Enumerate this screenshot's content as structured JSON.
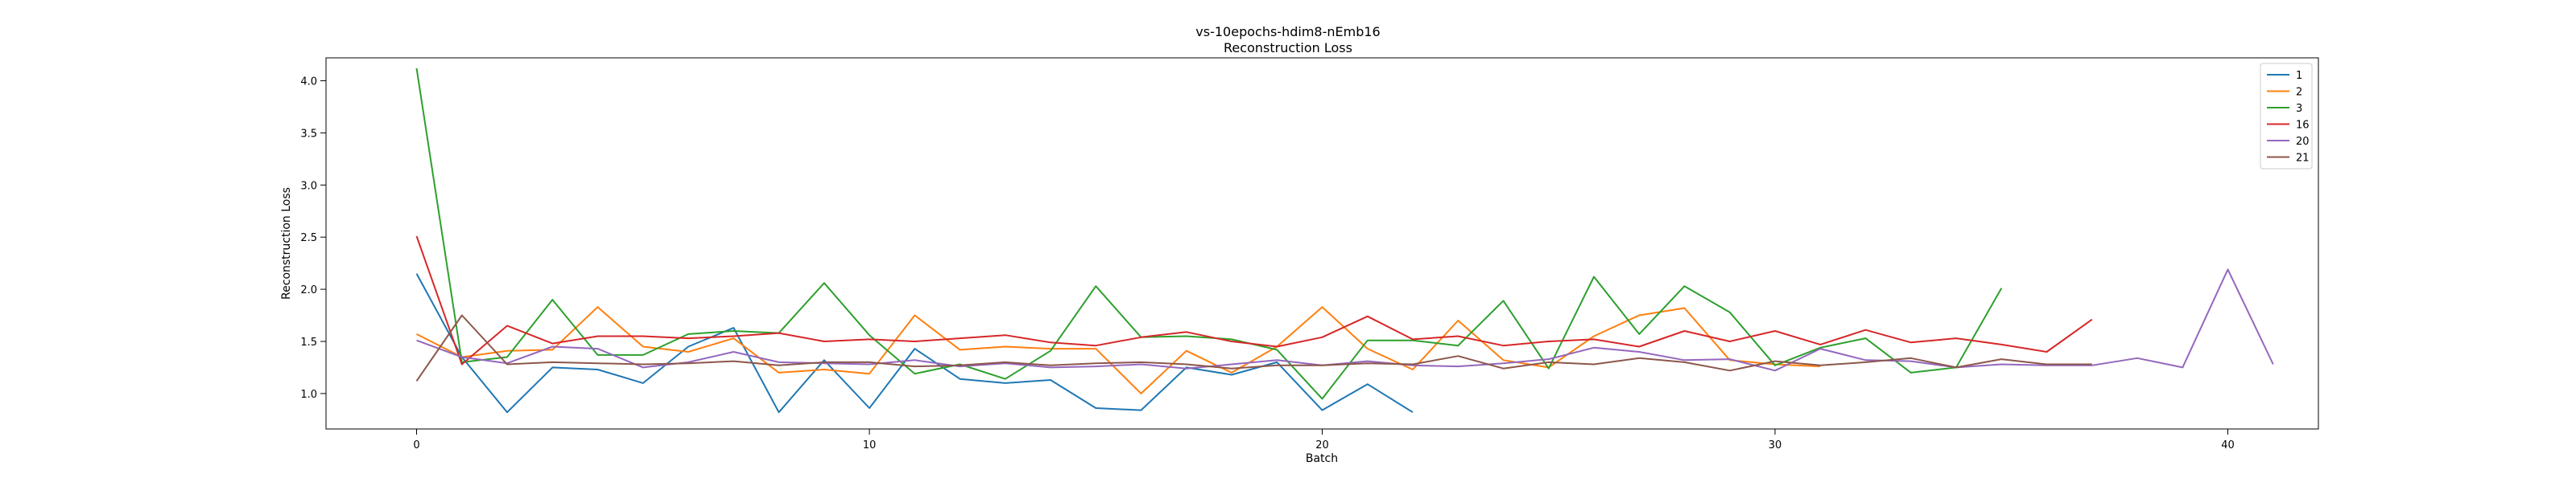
{
  "chart_data": {
    "type": "line",
    "title": "vs-10epochs-hdim8-nEmb16",
    "subtitle": "Reconstruction Loss",
    "xlabel": "Batch",
    "ylabel": "Reconstruction Loss",
    "xlim": [
      -2,
      42
    ],
    "ylim": [
      0.66,
      4.22
    ],
    "xticks": [
      0,
      10,
      20,
      30,
      40
    ],
    "yticks": [
      1.0,
      1.5,
      2.0,
      2.5,
      3.0,
      3.5,
      4.0
    ],
    "ytick_labels": [
      "1.0",
      "1.5",
      "2.0",
      "2.5",
      "3.0",
      "3.5",
      "4.0"
    ],
    "grid": false,
    "legend_position": "top-right",
    "series": [
      {
        "name": "1",
        "color": "#1f77b4",
        "values": [
          2.15,
          1.35,
          0.82,
          1.25,
          1.23,
          1.1,
          1.45,
          1.63,
          0.82,
          1.32,
          0.86,
          1.43,
          1.14,
          1.1,
          1.13,
          0.86,
          0.84,
          1.25,
          1.18,
          1.3,
          0.84,
          1.09,
          0.82
        ]
      },
      {
        "name": "2",
        "color": "#ff7f0e",
        "values": [
          1.57,
          1.35,
          1.41,
          1.42,
          1.83,
          1.45,
          1.4,
          1.53,
          1.2,
          1.23,
          1.19,
          1.75,
          1.42,
          1.45,
          1.43,
          1.43,
          1.0,
          1.41,
          1.2,
          1.45,
          1.83,
          1.43,
          1.23,
          1.7,
          1.32,
          1.25,
          1.55,
          1.75,
          1.82,
          1.32,
          1.28,
          1.26
        ]
      },
      {
        "name": "3",
        "color": "#2ca02c",
        "values": [
          4.12,
          1.3,
          1.35,
          1.9,
          1.37,
          1.37,
          1.57,
          1.6,
          1.58,
          2.06,
          1.56,
          1.19,
          1.28,
          1.14,
          1.41,
          2.03,
          1.54,
          1.55,
          1.52,
          1.42,
          0.95,
          1.51,
          1.51,
          1.46,
          1.89,
          1.24,
          2.12,
          1.57,
          2.03,
          1.78,
          1.27,
          1.44,
          1.53,
          1.2,
          1.25,
          2.01
        ]
      },
      {
        "name": "16",
        "color": "#d62728",
        "values": [
          2.51,
          1.28,
          1.65,
          1.48,
          1.55,
          1.55,
          1.53,
          1.55,
          1.58,
          1.5,
          1.52,
          1.5,
          1.53,
          1.56,
          1.49,
          1.46,
          1.54,
          1.59,
          1.5,
          1.45,
          1.54,
          1.74,
          1.52,
          1.55,
          1.46,
          1.5,
          1.52,
          1.45,
          1.6,
          1.5,
          1.6,
          1.47,
          1.61,
          1.49,
          1.53,
          1.47,
          1.4,
          1.71
        ]
      },
      {
        "name": "20",
        "color": "#9467bd",
        "values": [
          1.51,
          1.35,
          1.29,
          1.45,
          1.43,
          1.25,
          1.3,
          1.4,
          1.3,
          1.29,
          1.28,
          1.32,
          1.26,
          1.29,
          1.25,
          1.26,
          1.28,
          1.24,
          1.28,
          1.32,
          1.27,
          1.31,
          1.27,
          1.26,
          1.29,
          1.33,
          1.44,
          1.4,
          1.32,
          1.33,
          1.22,
          1.43,
          1.32,
          1.31,
          1.25,
          1.28,
          1.27,
          1.27,
          1.34,
          1.25,
          2.19,
          1.28
        ]
      },
      {
        "name": "21",
        "color": "#8c564b",
        "values": [
          1.12,
          1.75,
          1.28,
          1.3,
          1.29,
          1.28,
          1.29,
          1.31,
          1.27,
          1.3,
          1.3,
          1.26,
          1.27,
          1.3,
          1.27,
          1.29,
          1.3,
          1.28,
          1.24,
          1.27,
          1.27,
          1.29,
          1.28,
          1.36,
          1.24,
          1.3,
          1.28,
          1.34,
          1.3,
          1.22,
          1.31,
          1.27,
          1.3,
          1.34,
          1.25,
          1.33,
          1.28,
          1.28
        ]
      }
    ]
  }
}
